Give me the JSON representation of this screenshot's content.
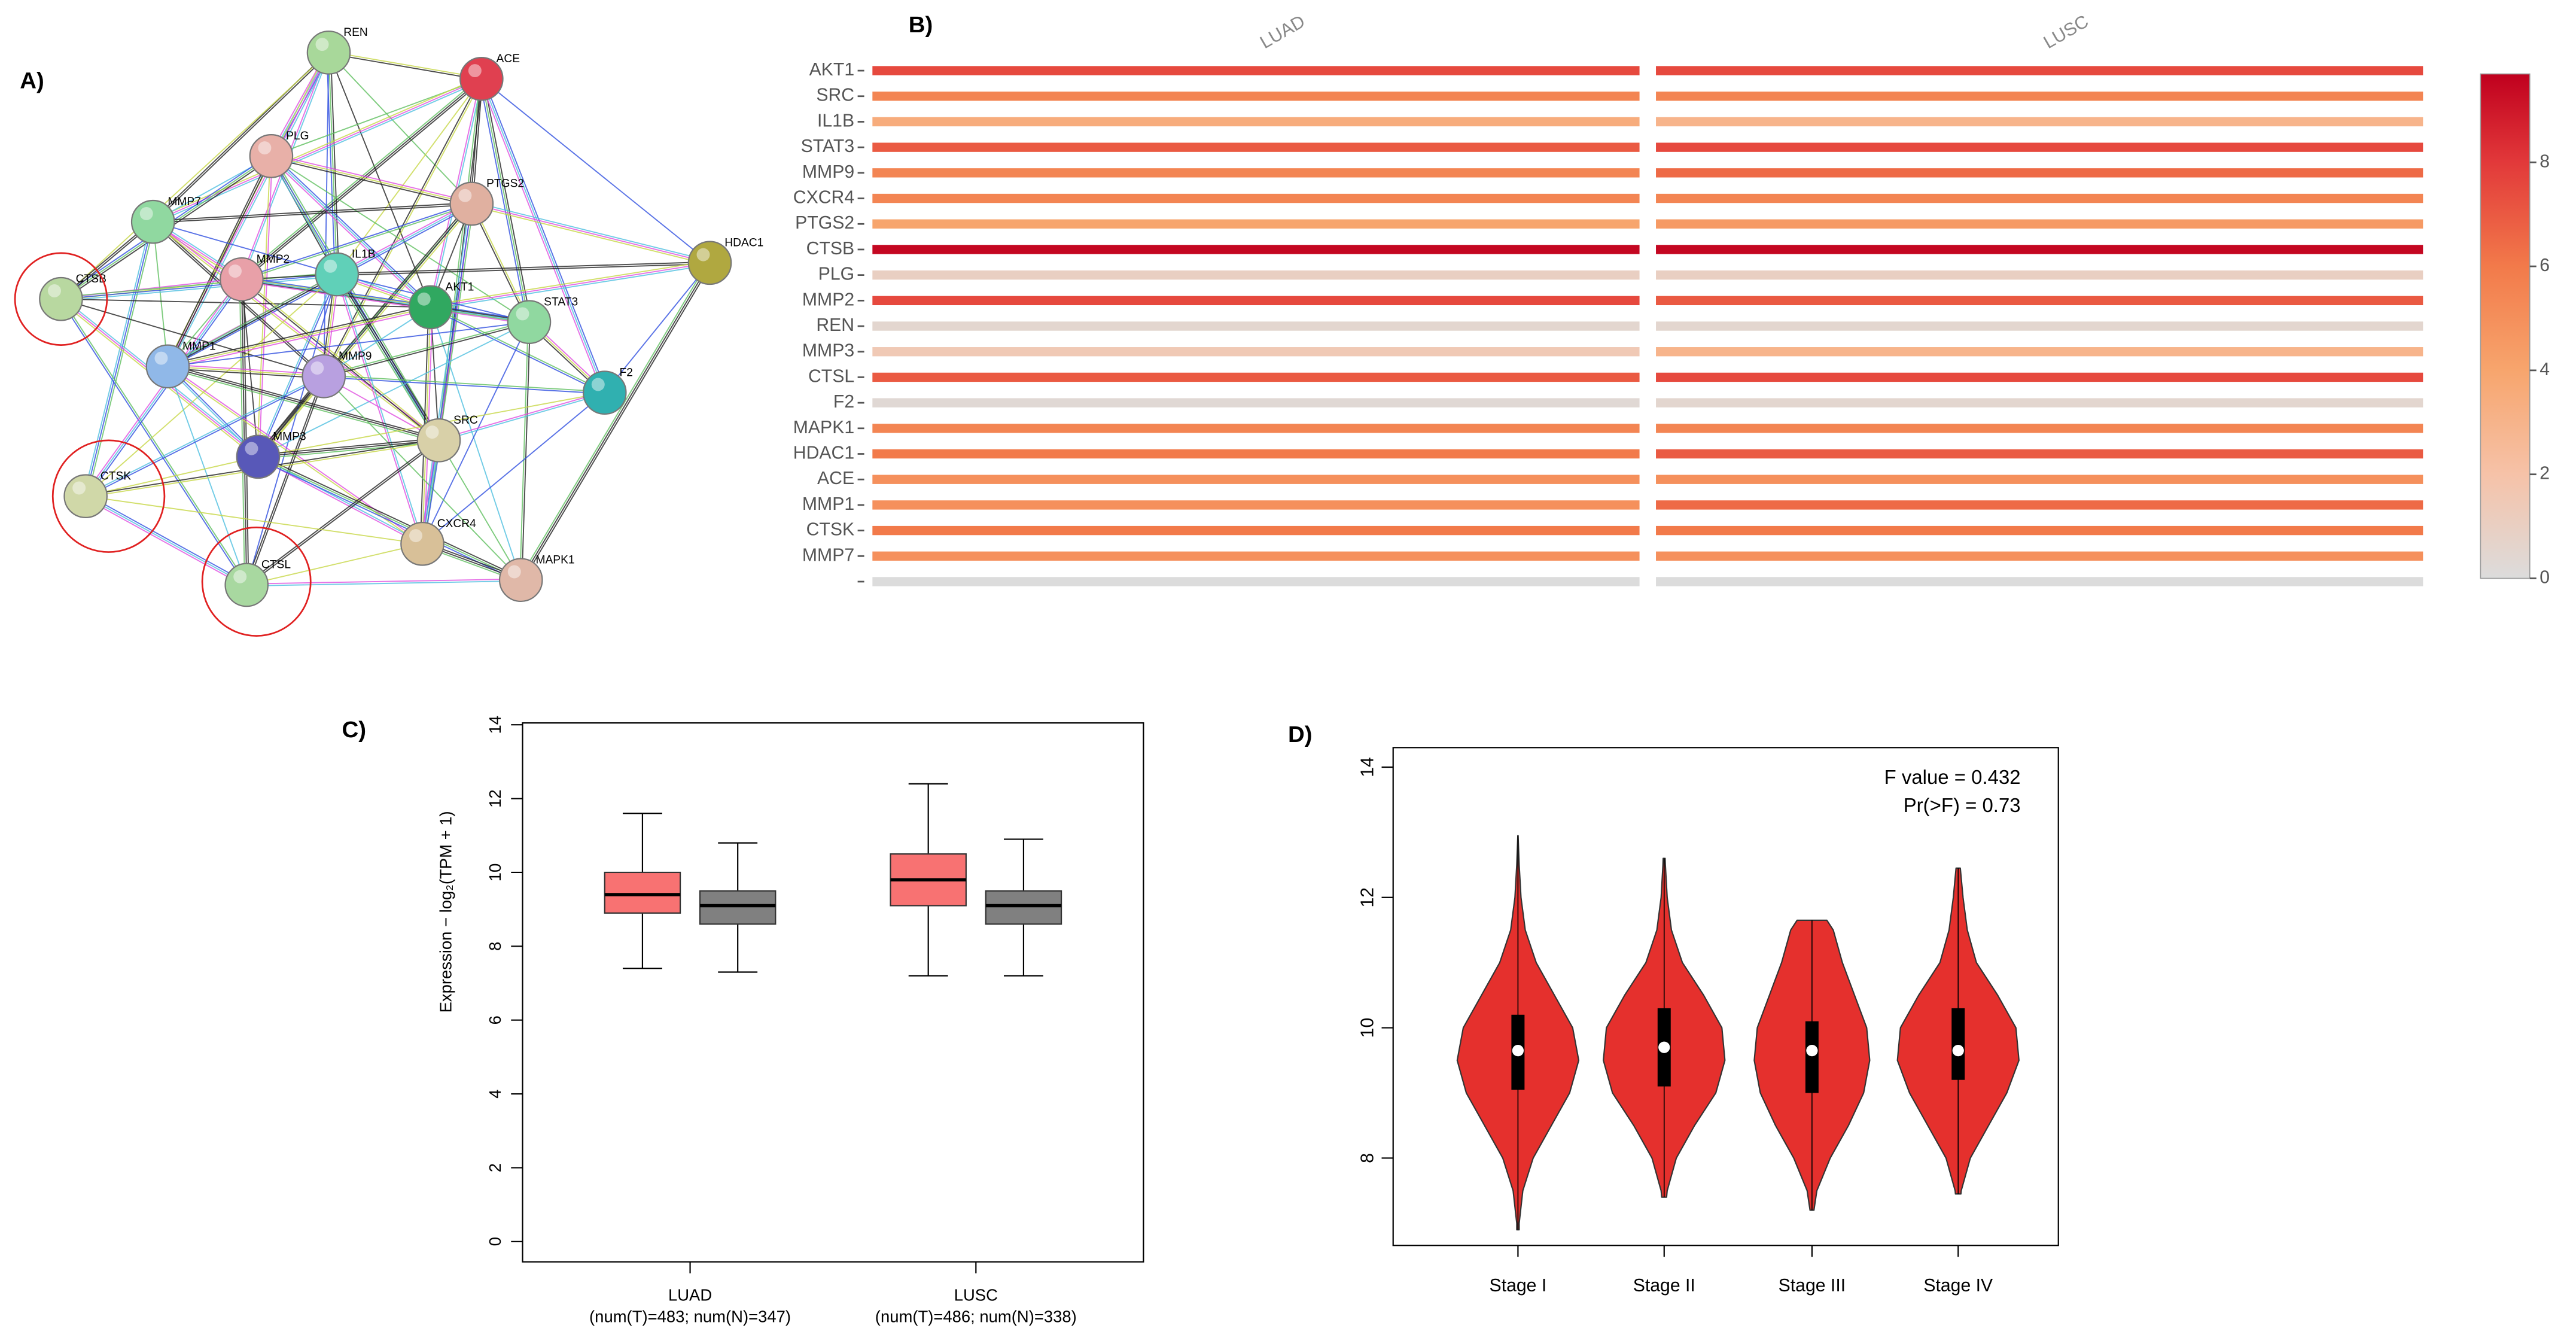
{
  "panel_labels": [
    "A)",
    "B)",
    "C)",
    "D)"
  ],
  "network": {
    "nodes": [
      {
        "label": "REN",
        "color": "#a8d89a"
      },
      {
        "label": "ACE",
        "color": "#e04050"
      },
      {
        "label": "PLG",
        "color": "#e8b0a8"
      },
      {
        "label": "PTGS2",
        "color": "#e0b0a0"
      },
      {
        "label": "MMP7",
        "color": "#90d8a0"
      },
      {
        "label": "HDAC1",
        "color": "#b0a840"
      },
      {
        "label": "CTSB",
        "color": "#b8d8a0"
      },
      {
        "label": "MMP2",
        "color": "#e8a0a8"
      },
      {
        "label": "IL1B",
        "color": "#60d0b8"
      },
      {
        "label": "AKT1",
        "color": "#30a860"
      },
      {
        "label": "STAT3",
        "color": "#90d8a0"
      },
      {
        "label": "MMP1",
        "color": "#90b8e8"
      },
      {
        "label": "MMP9",
        "color": "#b8a0e0"
      },
      {
        "label": "F2",
        "color": "#30b0b0"
      },
      {
        "label": "MMP3",
        "color": "#5858b8"
      },
      {
        "label": "SRC",
        "color": "#d8d0a8"
      },
      {
        "label": "CTSK",
        "color": "#d0d8a8"
      },
      {
        "label": "CXCR4",
        "color": "#d8c098"
      },
      {
        "label": "MAPK1",
        "color": "#e0b8a8"
      },
      {
        "label": "CTSL",
        "color": "#a8d8a0"
      }
    ]
  },
  "chart_data": [
    {
      "type": "heatmap",
      "categories": [
        "AKT1",
        "SRC",
        "IL1B",
        "STAT3",
        "MMP9",
        "CXCR4",
        "PTGS2",
        "CTSB",
        "PLG",
        "MMP2",
        "REN",
        "MMP3",
        "CTSL",
        "F2",
        "MAPK1",
        "HDAC1",
        "ACE",
        "MMP1",
        "CTSK",
        "MMP7",
        null
      ],
      "series": [
        {
          "name": "LUAD",
          "values": [
            7.5,
            5.5,
            3.5,
            7,
            5.5,
            5.5,
            4,
            9.5,
            1,
            7.5,
            0.5,
            1.5,
            7,
            0.3,
            5.5,
            6,
            5,
            5,
            6,
            5,
            0
          ]
        },
        {
          "name": "LUSC",
          "values": [
            7.5,
            5.5,
            3,
            7.5,
            6.5,
            5.5,
            4.5,
            9.5,
            1,
            7,
            0.5,
            3,
            7.5,
            0.5,
            5.5,
            7,
            5,
            6.5,
            6,
            5,
            0
          ]
        }
      ],
      "zlim": [
        0,
        9.7
      ],
      "zticks": [
        0,
        2,
        4,
        6,
        8
      ],
      "colorscale": [
        [
          0,
          "#dcdcdc"
        ],
        [
          2,
          "#f6c2a8"
        ],
        [
          4,
          "#f7a56d"
        ],
        [
          6,
          "#f27a4a"
        ],
        [
          8,
          "#e2393a"
        ],
        [
          9.7,
          "#c0001e"
        ]
      ]
    },
    {
      "type": "box",
      "ylabel": "Expression − log₂(TPM + 1)",
      "ylim": [
        -0.55,
        14.05
      ],
      "yticks": [
        0,
        2,
        4,
        6,
        8,
        10,
        12,
        14
      ],
      "groups": [
        {
          "name": "LUAD",
          "note": "(num(T)=483; num(N)=347)",
          "boxes": [
            {
              "color": "#f87272",
              "min": 7.4,
              "q1": 8.9,
              "median": 9.4,
              "q3": 10.0,
              "max": 11.6
            },
            {
              "color": "#808080",
              "min": 7.3,
              "q1": 8.6,
              "median": 9.1,
              "q3": 9.5,
              "max": 10.8
            }
          ]
        },
        {
          "name": "LUSC",
          "note": "(num(T)=486; num(N)=338)",
          "boxes": [
            {
              "color": "#f87272",
              "min": 7.2,
              "q1": 9.1,
              "median": 9.8,
              "q3": 10.5,
              "max": 12.4
            },
            {
              "color": "#808080",
              "min": 7.2,
              "q1": 8.6,
              "median": 9.1,
              "q3": 9.5,
              "max": 10.9
            }
          ]
        }
      ]
    },
    {
      "type": "violin",
      "categories": [
        "Stage I",
        "Stage II",
        "Stage III",
        "Stage IV"
      ],
      "annotations": [
        "F value = 0.432",
        "Pr(>F) = 0.73"
      ],
      "ylim": [
        6.66,
        14.3
      ],
      "yticks": [
        8,
        10,
        12,
        14
      ],
      "color": "#e5302d",
      "density_at": [
        7,
        7.5,
        8,
        8.5,
        9,
        9.5,
        10,
        10.5,
        11,
        11.5,
        12,
        12.5,
        13
      ],
      "violins": [
        {
          "min": 6.9,
          "q1": 9.05,
          "median": 9.65,
          "q3": 10.2,
          "max": 12.95,
          "density": [
            0.02,
            0.08,
            0.25,
            0.55,
            0.85,
            1,
            0.9,
            0.6,
            0.3,
            0.12,
            0.05,
            0.02,
            0
          ]
        },
        {
          "min": 7.4,
          "q1": 9.1,
          "median": 9.7,
          "q3": 10.3,
          "max": 12.6,
          "density": [
            0,
            0.05,
            0.2,
            0.5,
            0.85,
            1,
            0.95,
            0.65,
            0.3,
            0.12,
            0.05,
            0.02,
            0
          ]
        },
        {
          "min": 7.2,
          "q1": 9.0,
          "median": 9.65,
          "q3": 10.1,
          "max": 11.65,
          "density": [
            0,
            0.08,
            0.3,
            0.6,
            0.85,
            0.95,
            0.9,
            0.7,
            0.5,
            0.35,
            0,
            0,
            0
          ]
        },
        {
          "min": 7.45,
          "q1": 9.2,
          "median": 9.65,
          "q3": 10.3,
          "max": 12.45,
          "density": [
            0,
            0.05,
            0.2,
            0.5,
            0.8,
            1,
            0.95,
            0.65,
            0.3,
            0.15,
            0.08,
            0.03,
            0
          ]
        }
      ]
    }
  ]
}
